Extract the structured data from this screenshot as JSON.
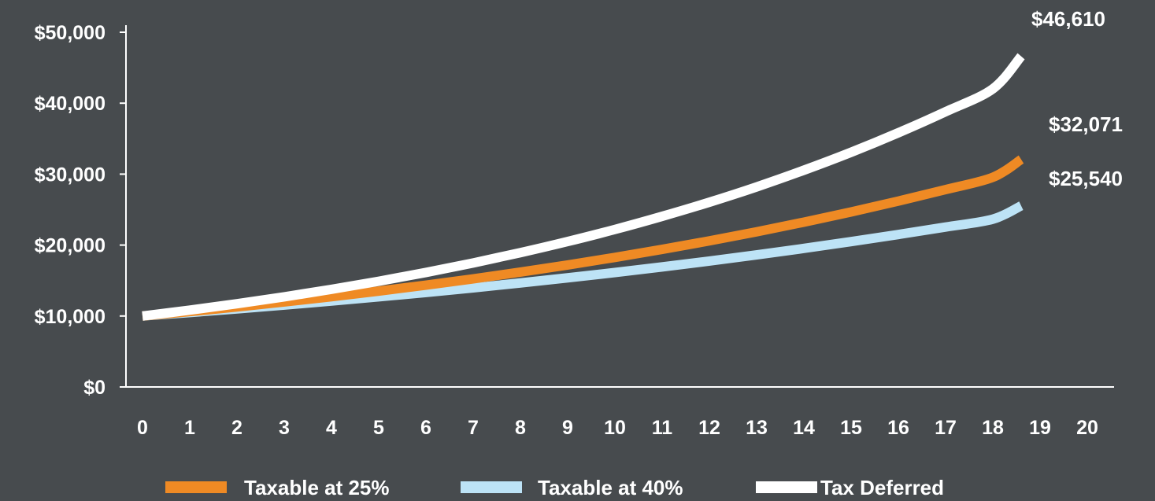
{
  "chart_data": {
    "type": "line",
    "x": [
      0,
      1,
      2,
      3,
      4,
      5,
      6,
      7,
      8,
      9,
      10,
      11,
      12,
      13,
      14,
      15,
      16,
      17,
      18,
      18.6
    ],
    "x_ticks": [
      "0",
      "1",
      "2",
      "3",
      "4",
      "5",
      "6",
      "7",
      "8",
      "9",
      "10",
      "11",
      "12",
      "13",
      "14",
      "15",
      "16",
      "17",
      "18",
      "19",
      "20"
    ],
    "y_ticks": [
      "$0",
      "$10,000",
      "$20,000",
      "$30,000",
      "$40,000",
      "$50,000"
    ],
    "xlim": [
      0,
      20
    ],
    "ylim": [
      0,
      50000
    ],
    "grid": false,
    "legend_position": "bottom",
    "series": [
      {
        "name": "Taxable at 25%",
        "color": "#ef8a24",
        "values": [
          10000,
          10620,
          11280,
          11980,
          12720,
          13510,
          14350,
          15240,
          16190,
          17190,
          18260,
          19390,
          20590,
          21870,
          23230,
          24670,
          26200,
          27820,
          29550,
          32071
        ],
        "end_label": "$32,071"
      },
      {
        "name": "Taxable at 40%",
        "color": "#bde3f6",
        "values": [
          10000,
          10490,
          11000,
          11540,
          12110,
          12700,
          13320,
          13970,
          14660,
          15380,
          16130,
          16920,
          17750,
          18620,
          19530,
          20490,
          21490,
          22540,
          23650,
          25540
        ],
        "end_label": "$25,540"
      },
      {
        "name": "Tax Deferred",
        "color": "#ffffff",
        "values": [
          10000,
          10830,
          11730,
          12700,
          13760,
          14900,
          16140,
          17480,
          18930,
          20500,
          22200,
          24050,
          26040,
          28200,
          30550,
          33080,
          35830,
          38800,
          42020,
          46610
        ],
        "end_label": "$46,610"
      }
    ]
  }
}
